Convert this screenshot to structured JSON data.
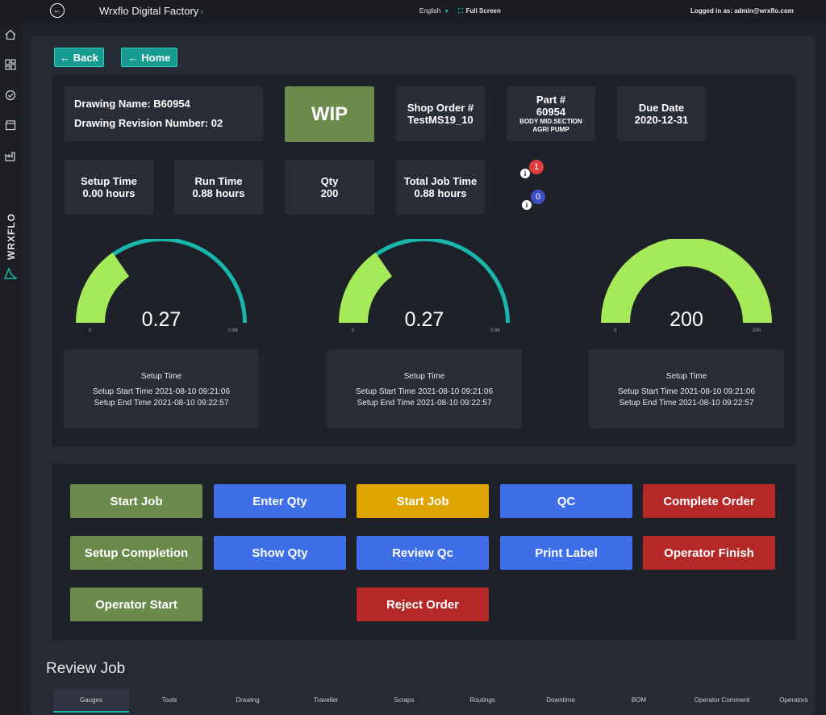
{
  "header": {
    "app_title": "Wrxflo Digital Factory",
    "title_chevron": "›",
    "language": "English",
    "language_caret": "▼",
    "fullscreen_icon": "⛶",
    "fullscreen_label": "Full Screen",
    "logged_in": "Logged in as: admin@wrxflo.com",
    "back_glyph": "←"
  },
  "sidebar": {
    "brand": "WRXFLO",
    "icons": [
      "menu-icon",
      "home-icon",
      "dashboard-icon",
      "check-circle-icon",
      "clapper-icon",
      "factory-icon"
    ]
  },
  "nav": {
    "back": "← Back",
    "home": "← Home"
  },
  "job": {
    "drawing_name": "Drawing Name: B60954",
    "drawing_revision": "Drawing Revision Number: 02",
    "status": "WIP",
    "shop_order_label": "Shop Order #",
    "shop_order_value": "TestMS19_10",
    "part_label": "Part #",
    "part_value": "60954",
    "part_desc_1": "BODY MID.SECTION",
    "part_desc_2": "AGRI PUMP",
    "due_label": "Due Date",
    "due_value": "2020-12-31",
    "setup_label": "Setup Time",
    "setup_value": "0.00 hours",
    "run_label": "Run Time",
    "run_value": "0.88 hours",
    "qty_label": "Qty",
    "qty_value": "200",
    "total_label": "Total Job Time",
    "total_value": "0.88 hours",
    "info_glyph": "i",
    "badge_red": "1",
    "badge_blue": "0"
  },
  "gauges": [
    {
      "value": 0.27,
      "value_text": "0.27",
      "min": "0",
      "max": "0.88",
      "max_num": 0.88,
      "info_title": "Setup Time",
      "start": "Setup Start Time 2021-08-10 09:21:06",
      "end": "Setup End Time 2021-08-10 09:22:57"
    },
    {
      "value": 0.27,
      "value_text": "0.27",
      "min": "0",
      "max": "0.88",
      "max_num": 0.88,
      "info_title": "Setup Time",
      "start": "Setup Start Time 2021-08-10 09:21:06",
      "end": "Setup End Time 2021-08-10 09:22:57"
    },
    {
      "value": 200,
      "value_text": "200",
      "min": "0",
      "max": "200",
      "max_num": 200,
      "info_title": "Setup Time",
      "start": "Setup Start Time 2021-08-10 09:21:06",
      "end": "Setup End Time 2021-08-10 09:22:57"
    }
  ],
  "colors": {
    "gauge_fill": "#a5ea58",
    "gauge_track": "#18b6ad",
    "accent": "#19b3a8"
  },
  "actions": {
    "start_job_1": "Start Job",
    "enter_qty": "Enter Qty",
    "start_job_2": "Start Job",
    "qc": "QC",
    "complete_order": "Complete Order",
    "setup_completion": "Setup Completion",
    "show_qty": "Show Qty",
    "review_qc": "Review Qc",
    "print_label": "Print Label",
    "operator_finish": "Operator Finish",
    "operator_start": "Operator Start",
    "reject_order": "Reject Order"
  },
  "review": {
    "title": "Review Job",
    "tabs": [
      "Gauges",
      "Tools",
      "Drawing",
      "Traveller",
      "Scraps",
      "Routings",
      "Downtime",
      "BOM",
      "Operator Comment",
      "Operators"
    ],
    "active_tab": "Gauges"
  }
}
